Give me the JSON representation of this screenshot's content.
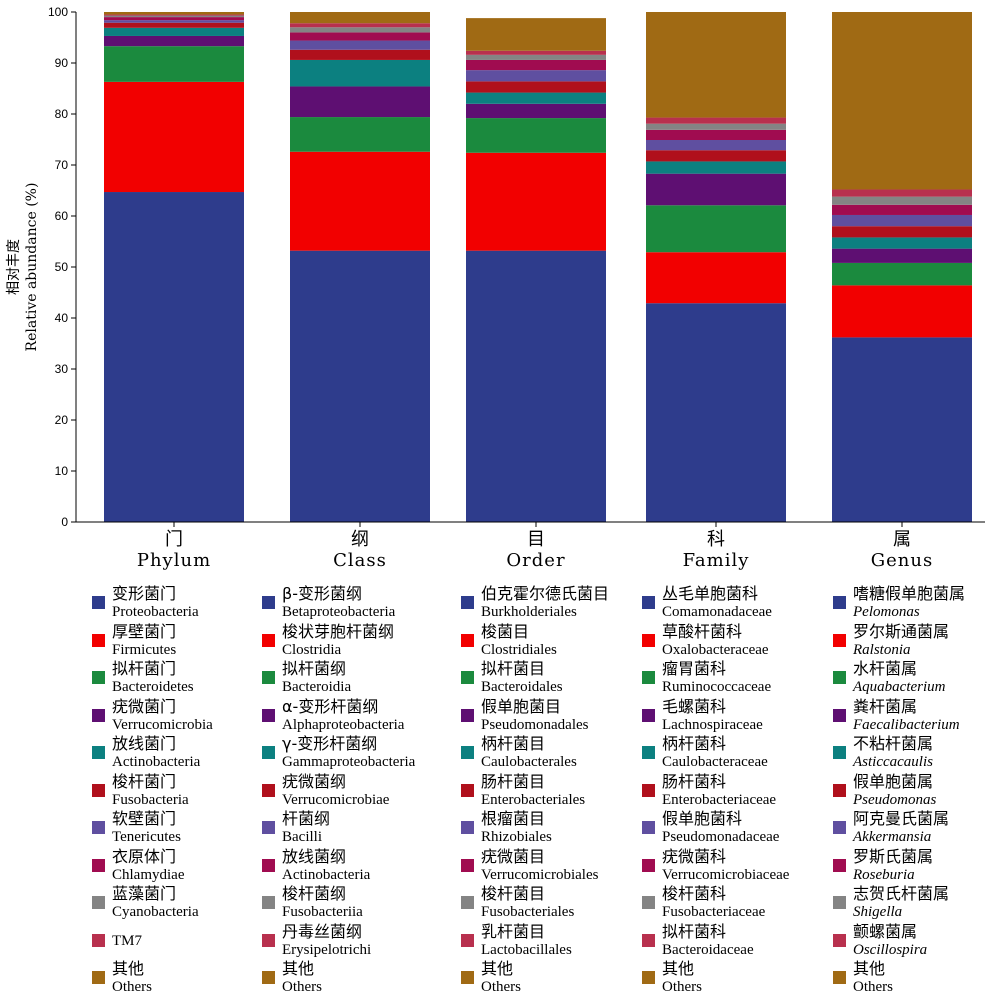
{
  "chart_data": {
    "type": "bar",
    "stacked": true,
    "ylabel_cn": "相对丰度",
    "ylabel": "Relative abundance (%)",
    "ylim": [
      0,
      100
    ],
    "yticks": [
      0,
      10,
      20,
      30,
      40,
      50,
      60,
      70,
      80,
      90,
      100
    ],
    "categories": [
      {
        "cn": "门",
        "en": "Phylum"
      },
      {
        "cn": "纲",
        "en": "Class"
      },
      {
        "cn": "目",
        "en": "Order"
      },
      {
        "cn": "科",
        "en": "Family"
      },
      {
        "cn": "属",
        "en": "Genus"
      }
    ],
    "colors": [
      "#2E3C8C",
      "#F20000",
      "#1B8A3E",
      "#5E0F72",
      "#0C8080",
      "#B0101C",
      "#5F4FA0",
      "#A00C50",
      "#848484",
      "#B8304E",
      "#A06A14"
    ],
    "stacks": [
      {
        "taxon": "Phylum",
        "legend": [
          {
            "cn": "变形菌门",
            "en": "Proteobacteria",
            "italic": false
          },
          {
            "cn": "厚壁菌门",
            "en": "Firmicutes",
            "italic": false
          },
          {
            "cn": "拟杆菌门",
            "en": "Bacteroidetes",
            "italic": false
          },
          {
            "cn": "疣微菌门",
            "en": "Verrucomicrobia",
            "italic": false
          },
          {
            "cn": "放线菌门",
            "en": "Actinobacteria",
            "italic": false
          },
          {
            "cn": "梭杆菌门",
            "en": "Fusobacteria",
            "italic": false
          },
          {
            "cn": "软壁菌门",
            "en": "Tenericutes",
            "italic": false
          },
          {
            "cn": "衣原体门",
            "en": "Chlamydiae",
            "italic": false
          },
          {
            "cn": "蓝藻菌门",
            "en": "Cyanobacteria",
            "italic": false
          },
          {
            "cn": "",
            "en": "TM7",
            "italic": false
          },
          {
            "cn": "其他",
            "en": "Others",
            "italic": false
          }
        ],
        "values": [
          64.7,
          21.6,
          7.0,
          2.0,
          1.6,
          1.0,
          0.5,
          0.6,
          0.3,
          0.2,
          0.5
        ]
      },
      {
        "taxon": "Class",
        "legend": [
          {
            "cn": "β-变形菌纲",
            "en": "Betaproteobacteria",
            "italic": false
          },
          {
            "cn": "梭状芽胞杆菌纲",
            "en": "Clostridia",
            "italic": false
          },
          {
            "cn": "拟杆菌纲",
            "en": "Bacteroidia",
            "italic": false
          },
          {
            "cn": "α-变形杆菌纲",
            "en": "Alphaproteobacteria",
            "italic": false
          },
          {
            "cn": "γ-变形杆菌纲",
            "en": "Gammaproteobacteria",
            "italic": false
          },
          {
            "cn": "疣微菌纲",
            "en": "Verrucomicrobiae",
            "italic": false
          },
          {
            "cn": "杆菌纲",
            "en": "Bacilli",
            "italic": false
          },
          {
            "cn": "放线菌纲",
            "en": "Actinobacteria",
            "italic": false
          },
          {
            "cn": "梭杆菌纲",
            "en": "Fusobacteriia",
            "italic": false
          },
          {
            "cn": "丹毒丝菌纲",
            "en": "Erysipelotrichi",
            "italic": false
          },
          {
            "cn": "其他",
            "en": "Others",
            "italic": false
          }
        ],
        "values": [
          53.2,
          19.4,
          6.8,
          6.0,
          5.2,
          2.0,
          1.8,
          1.6,
          1.0,
          0.8,
          2.2
        ]
      },
      {
        "taxon": "Order",
        "legend": [
          {
            "cn": "伯克霍尔德氏菌目",
            "en": "Burkholderiales",
            "italic": false
          },
          {
            "cn": "梭菌目",
            "en": "Clostridiales",
            "italic": false
          },
          {
            "cn": "拟杆菌目",
            "en": "Bacteroidales",
            "italic": false
          },
          {
            "cn": "假单胞菌目",
            "en": "Pseudomonadales",
            "italic": false
          },
          {
            "cn": "柄杆菌目",
            "en": "Caulobacterales",
            "italic": false
          },
          {
            "cn": "肠杆菌目",
            "en": "Enterobacteriales",
            "italic": false
          },
          {
            "cn": "根瘤菌目",
            "en": "Rhizobiales",
            "italic": false
          },
          {
            "cn": "疣微菌目",
            "en": "Verrucomicrobiales",
            "italic": false
          },
          {
            "cn": "梭杆菌目",
            "en": "Fusobacteriales",
            "italic": false
          },
          {
            "cn": "乳杆菌目",
            "en": "Lactobacillales",
            "italic": false
          },
          {
            "cn": "其他",
            "en": "Others",
            "italic": false
          }
        ],
        "values": [
          53.2,
          19.2,
          6.8,
          2.8,
          2.2,
          2.2,
          2.2,
          2.0,
          1.0,
          0.8,
          6.4
        ]
      },
      {
        "taxon": "Family",
        "legend": [
          {
            "cn": "丛毛单胞菌科",
            "en": "Comamonadaceae",
            "italic": false
          },
          {
            "cn": "草酸杆菌科",
            "en": "Oxalobacteraceae",
            "italic": false
          },
          {
            "cn": "瘤胃菌科",
            "en": "Ruminococcaceae",
            "italic": false
          },
          {
            "cn": "毛螺菌科",
            "en": "Lachnospiraceae",
            "italic": false
          },
          {
            "cn": "柄杆菌科",
            "en": "Caulobacteraceae",
            "italic": false
          },
          {
            "cn": "肠杆菌科",
            "en": "Enterobacteriaceae",
            "italic": false
          },
          {
            "cn": "假单胞菌科",
            "en": "Pseudomonadaceae",
            "italic": false
          },
          {
            "cn": "疣微菌科",
            "en": "Verrucomicrobiaceae",
            "italic": false
          },
          {
            "cn": "梭杆菌科",
            "en": "Fusobacteriaceae",
            "italic": false
          },
          {
            "cn": "拟杆菌科",
            "en": "Bacteroidaceae",
            "italic": false
          },
          {
            "cn": "其他",
            "en": "Others",
            "italic": false
          }
        ],
        "values": [
          42.9,
          10.0,
          9.2,
          6.2,
          2.4,
          2.2,
          2.0,
          2.0,
          1.2,
          1.2,
          20.7
        ]
      },
      {
        "taxon": "Genus",
        "legend": [
          {
            "cn": "嗜糖假单胞菌属",
            "en": "Pelomonas",
            "italic": true
          },
          {
            "cn": "罗尔斯通菌属",
            "en": "Ralstonia",
            "italic": true
          },
          {
            "cn": "水杆菌属",
            "en": "Aquabacterium",
            "italic": true
          },
          {
            "cn": "粪杆菌属",
            "en": "Faecalibacterium",
            "italic": true
          },
          {
            "cn": "不粘杆菌属",
            "en": "Asticcacaulis",
            "italic": true
          },
          {
            "cn": "假单胞菌属",
            "en": "Pseudomonas",
            "italic": true
          },
          {
            "cn": "阿克曼氏菌属",
            "en": "Akkermansia",
            "italic": true
          },
          {
            "cn": "罗斯氏菌属",
            "en": "Roseburia",
            "italic": true
          },
          {
            "cn": "志贺氏杆菌属",
            "en": "Shigella",
            "italic": true
          },
          {
            "cn": "颤螺菌属",
            "en": "Oscillospira",
            "italic": true
          },
          {
            "cn": "其他",
            "en": "Others",
            "italic": false
          }
        ],
        "values": [
          36.2,
          10.2,
          4.4,
          2.8,
          2.2,
          2.2,
          2.2,
          2.0,
          1.6,
          1.4,
          34.8
        ]
      }
    ]
  }
}
